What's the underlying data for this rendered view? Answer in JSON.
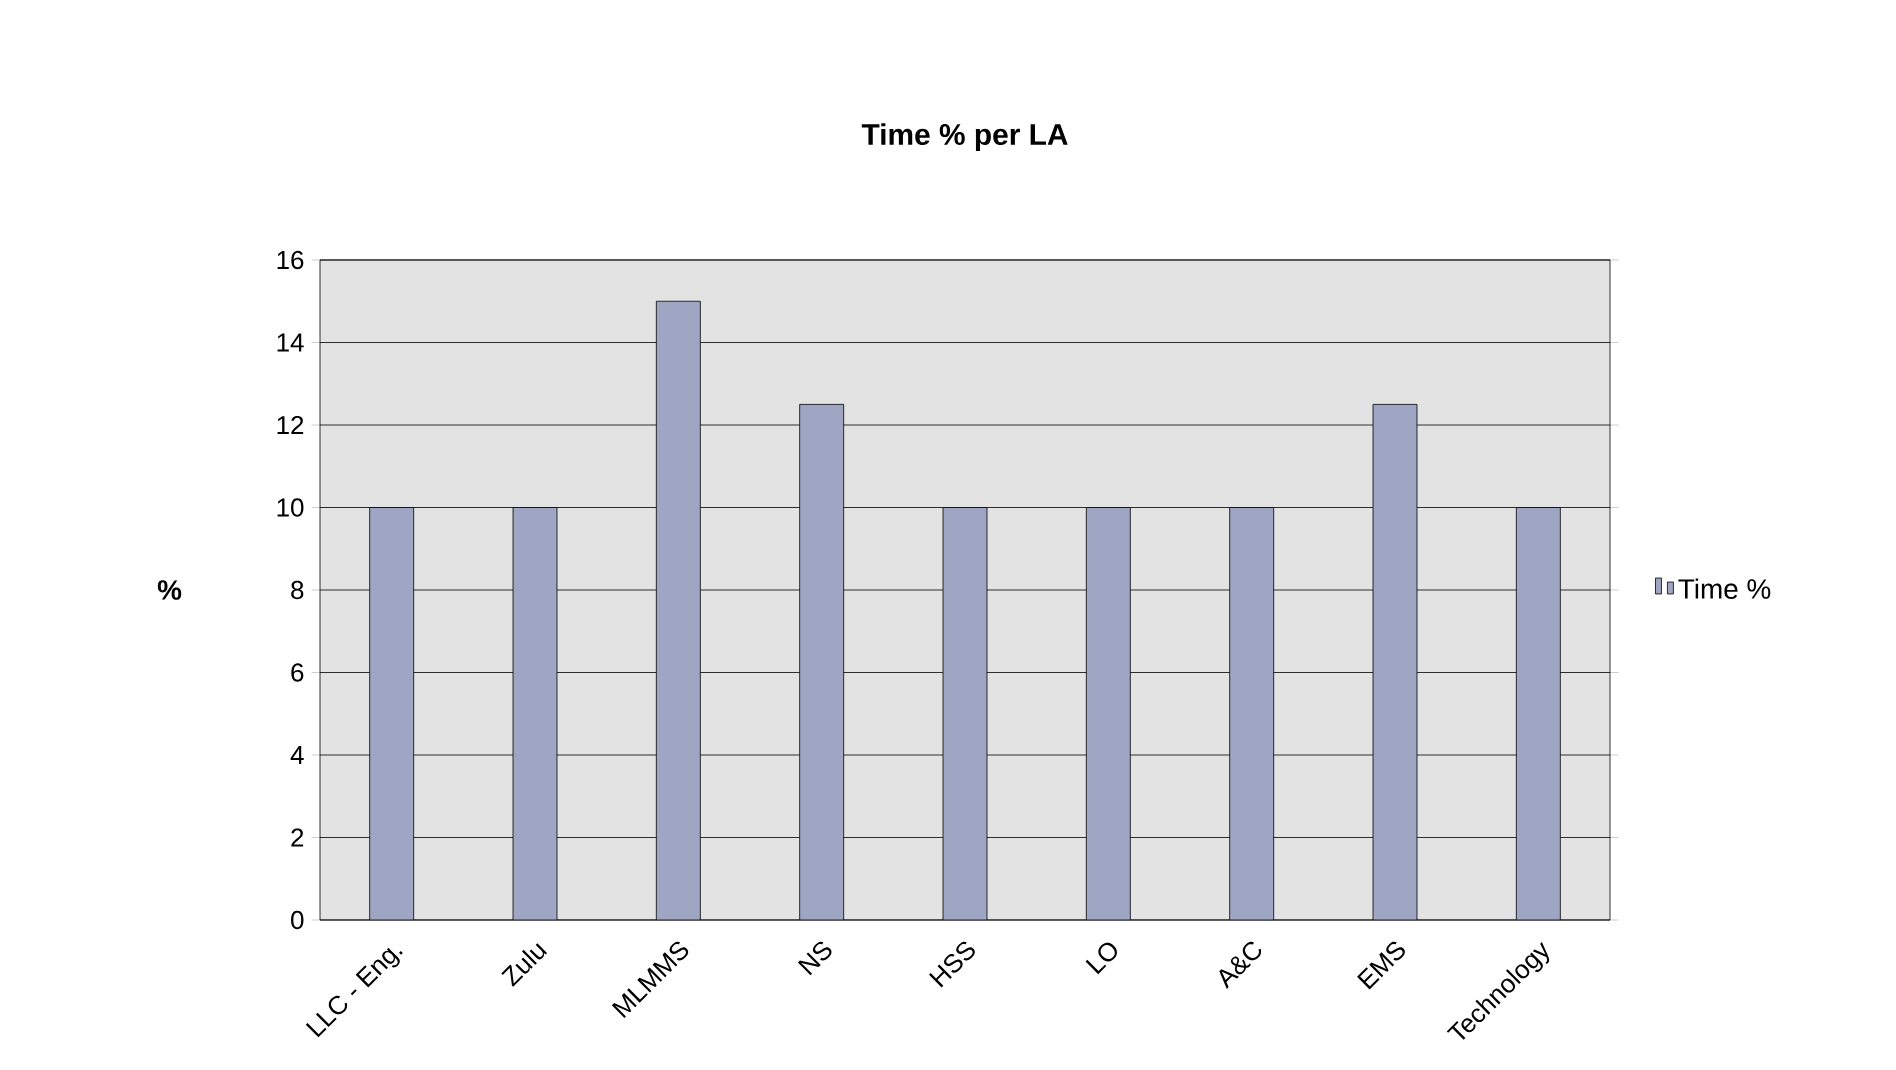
{
  "chart_data": {
    "type": "bar",
    "title": "Time % per LA",
    "ylabel": "%",
    "categories": [
      "LLC - Eng.",
      "Zulu",
      "MLMMS",
      "NS",
      "HSS",
      "LO",
      "A&C",
      "EMS",
      "Technology"
    ],
    "series": [
      {
        "name": "Time %",
        "color": "#9ea6c4",
        "values": [
          10,
          10,
          15,
          12.5,
          10,
          10,
          10,
          12.5,
          10
        ]
      }
    ],
    "ylim": [
      0,
      16
    ],
    "yticks": [
      0,
      2,
      4,
      6,
      8,
      10,
      12,
      14,
      16
    ],
    "grid": "y",
    "legend": "right"
  }
}
